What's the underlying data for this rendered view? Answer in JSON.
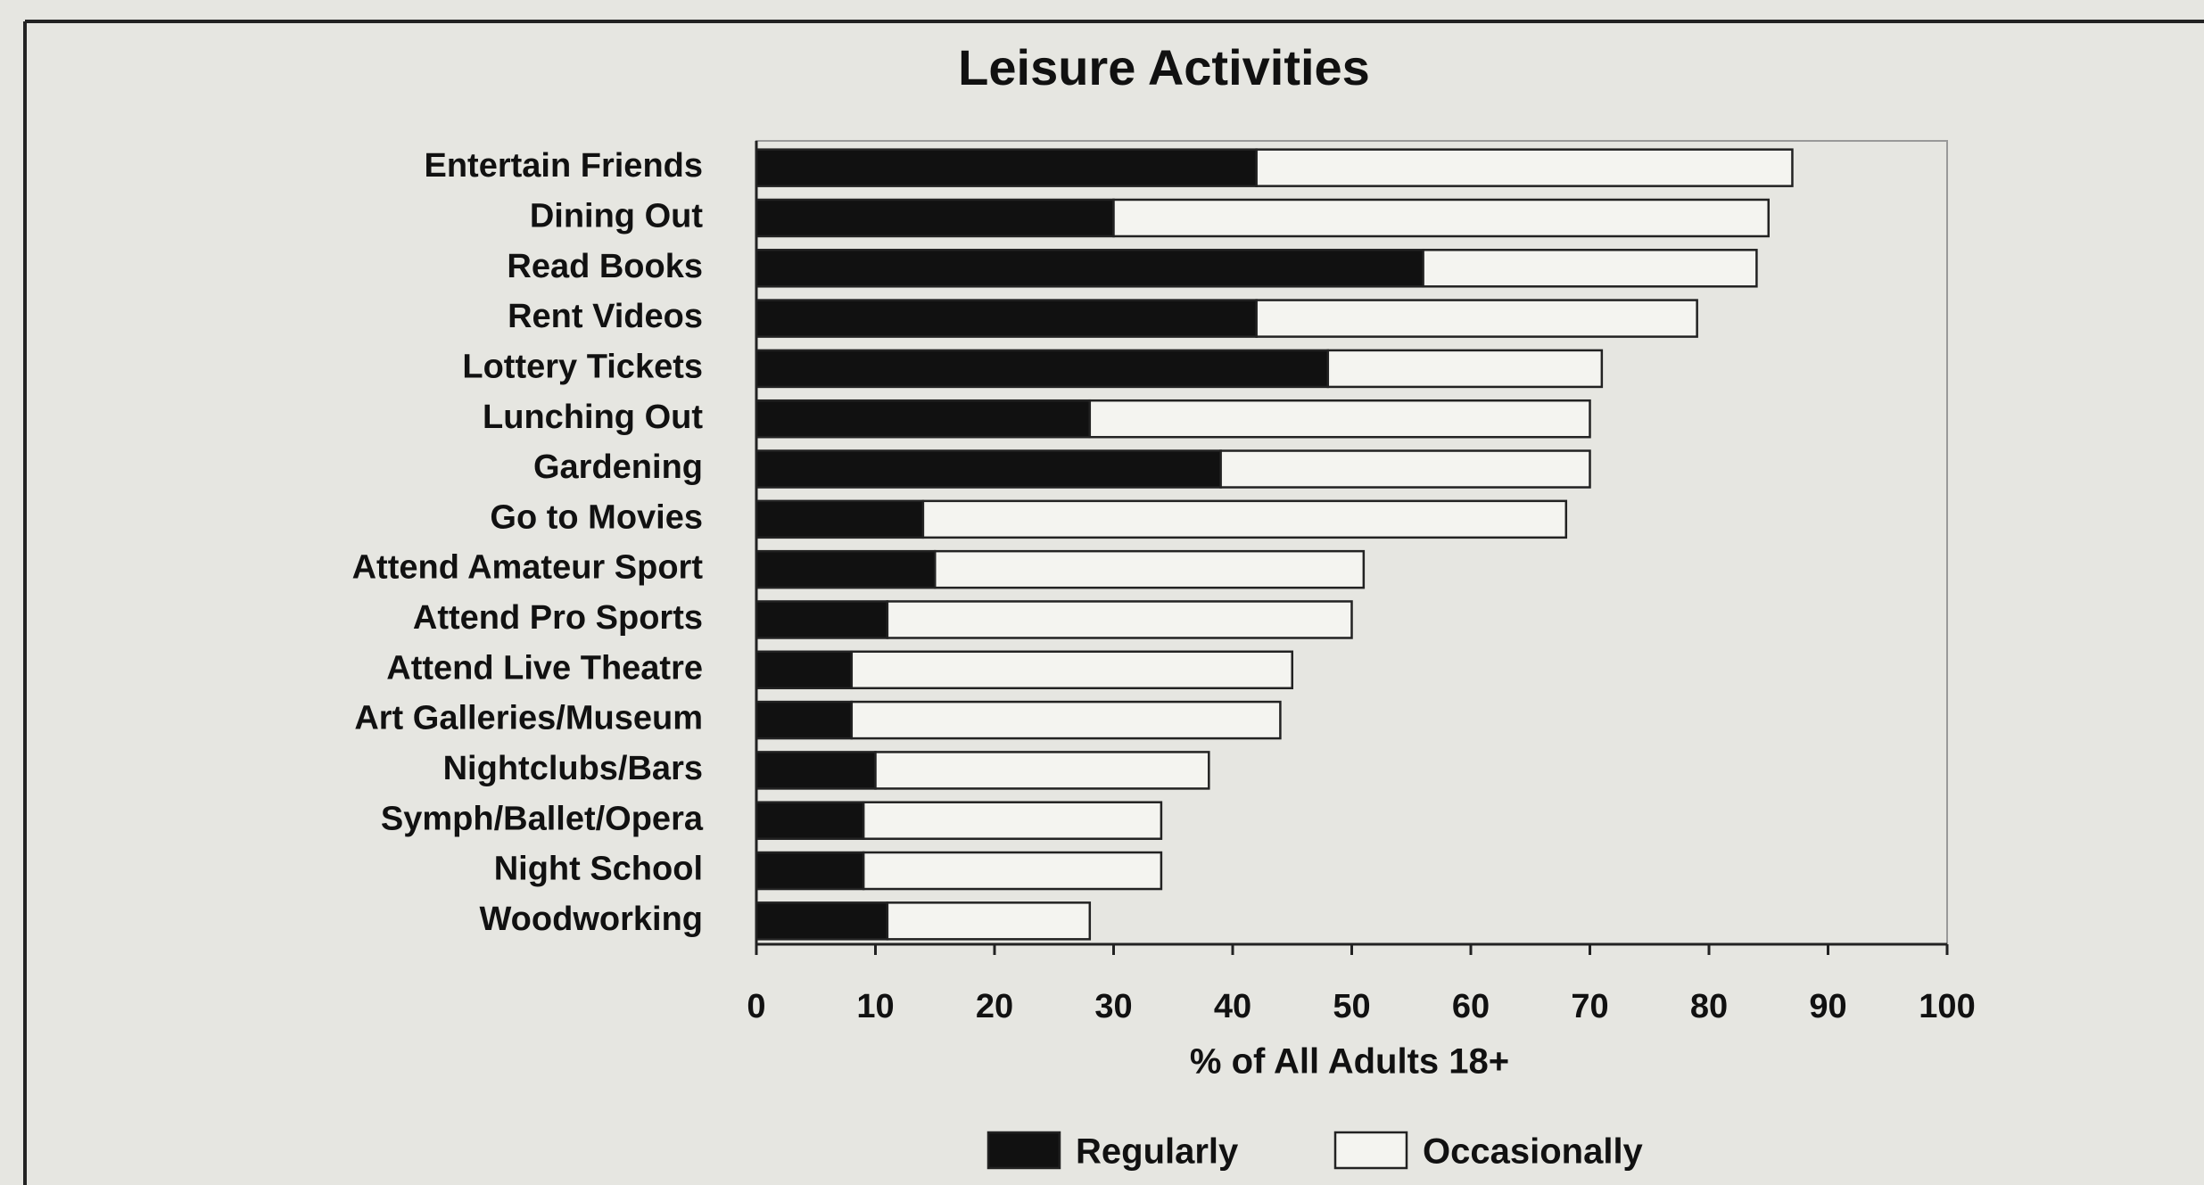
{
  "chart_data": {
    "type": "stacked-barh",
    "title": "Leisure Activities",
    "categories": [
      "Entertain Friends",
      "Dining Out",
      "Read Books",
      "Rent Videos",
      "Lottery Tickets",
      "Lunching Out",
      "Gardening",
      "Go to Movies",
      "Attend Amateur Sport",
      "Attend Pro Sports",
      "Attend Live Theatre",
      "Art Galleries/Museum",
      "Nightclubs/Bars",
      "Symph/Ballet/Opera",
      "Night School",
      "Woodworking"
    ],
    "series": [
      {
        "name": "Regularly",
        "color": "#111111",
        "values": [
          42,
          30,
          56,
          42,
          48,
          28,
          39,
          14,
          15,
          11,
          8,
          8,
          10,
          9,
          9,
          11
        ]
      },
      {
        "name": "Occasionally",
        "color": "#f4f4f0",
        "values": [
          45,
          55,
          28,
          37,
          23,
          42,
          31,
          54,
          36,
          39,
          37,
          36,
          28,
          25,
          25,
          17
        ]
      }
    ],
    "xlabel": "% of All Adults 18+",
    "xlim": [
      0,
      100
    ],
    "xticks": [
      0,
      10,
      20,
      30,
      40,
      50,
      60,
      70,
      80,
      90,
      100
    ],
    "legend": "bottom",
    "grid": false
  }
}
